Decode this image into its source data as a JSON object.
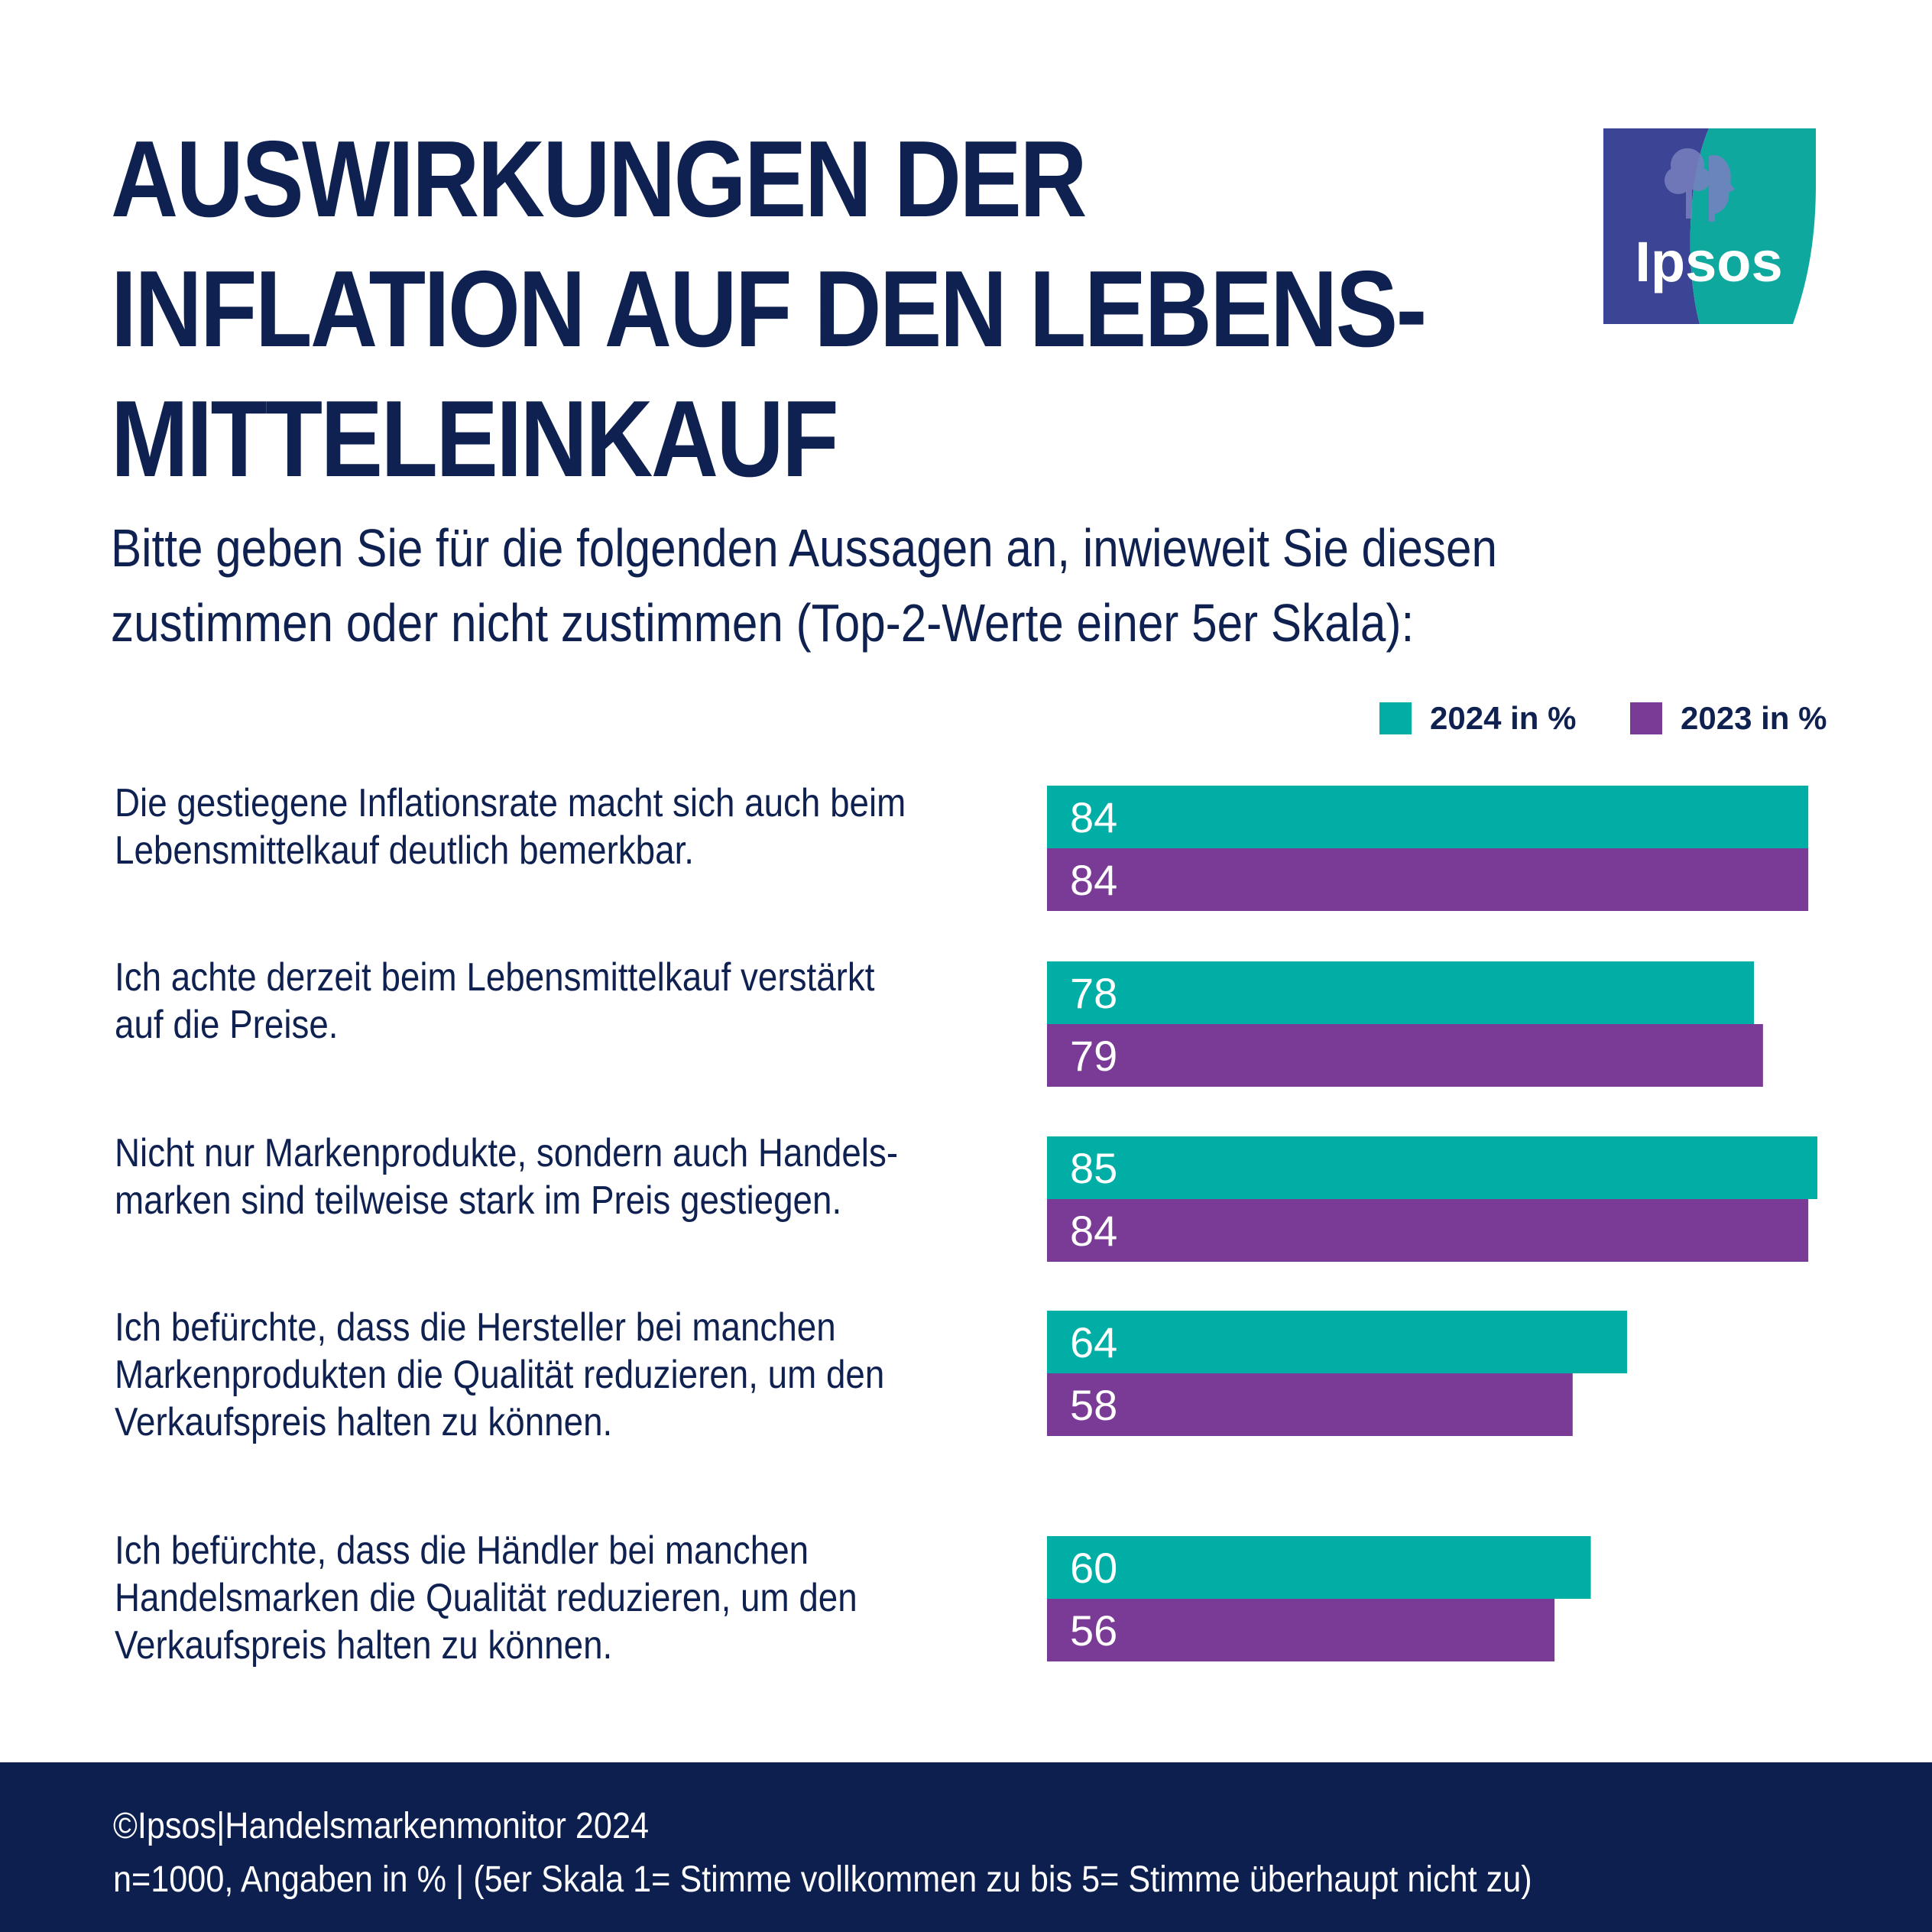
{
  "title_lines": [
    "AUSWIRKUNGEN DER",
    "INFLATION AUF DEN LEBENS-",
    "MITTELEINKAUF"
  ],
  "subtitle_lines": [
    "Bitte geben Sie für die folgenden Aussagen an, inwieweit Sie diesen",
    "zustimmen oder nicht zustimmen (Top-2-Werte einer 5er Skala):"
  ],
  "logo": {
    "text": "Ipsos",
    "colors": {
      "left": "#3c4595",
      "right": "#0ea89f"
    }
  },
  "footer": {
    "line1": "©Ipsos|Handelsmarkenmonitor 2024",
    "line2": "n=1000, Angaben in %  | (5er Skala 1= Stimme vollkommen zu bis 5= Stimme überhaupt nicht zu)"
  },
  "statements": [
    [
      "Die gestiegene Inflationsrate macht sich auch beim",
      "Lebensmittelkauf deutlich bemerkbar."
    ],
    [
      "Ich achte derzeit beim Lebensmittelkauf verstärkt",
      "auf die Preise."
    ],
    [
      "Nicht nur Markenprodukte, sondern auch Handels-",
      "marken sind teilweise stark im Preis gestiegen."
    ],
    [
      "Ich befürchte, dass die Hersteller bei manchen",
      "Markenprodukten die Qualität reduzieren, um den",
      "Verkaufspreis halten zu können."
    ],
    [
      "Ich befürchte, dass die Händler bei manchen",
      "Handelsmarken die Qualität reduzieren, um den",
      "Verkaufspreis halten zu können."
    ]
  ],
  "chart_data": {
    "type": "bar",
    "orientation": "horizontal",
    "categories": [
      "Die gestiegene Inflationsrate macht sich auch beim Lebensmittelkauf deutlich bemerkbar.",
      "Ich achte derzeit beim Lebensmittelkauf verstärkt auf die Preise.",
      "Nicht nur Markenprodukte, sondern auch Handelsmarken sind teilweise stark im Preis gestiegen.",
      "Ich befürchte, dass die Hersteller bei manchen Markenprodukten die Qualität reduzieren, um den Verkaufspreis halten zu können.",
      "Ich befürchte, dass die Händler bei manchen Handelsmarken die Qualität reduzieren, um den Verkaufspreis halten zu können."
    ],
    "series": [
      {
        "name": "2024 in %",
        "color": "#00aea5",
        "values": [
          84,
          78,
          85,
          64,
          60
        ]
      },
      {
        "name": "2023 in %",
        "color": "#7a3b96",
        "values": [
          84,
          79,
          84,
          58,
          56
        ]
      }
    ],
    "xlim": [
      0,
      85
    ],
    "data_labels": true,
    "legend_position": "top-right",
    "grid": false
  }
}
